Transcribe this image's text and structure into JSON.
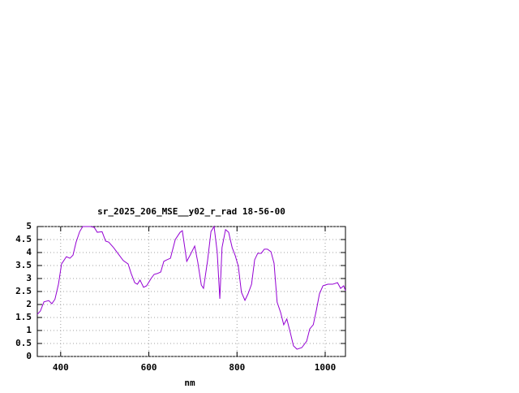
{
  "chart_data": {
    "type": "line",
    "title": "sr_2025_206_MSE__y02_r_rad 18-56-00",
    "x_label": "nm",
    "x": [
      347,
      354,
      362,
      373,
      380,
      387,
      395,
      402,
      413,
      421,
      428,
      435,
      443,
      450,
      468,
      476,
      483,
      494,
      502,
      509,
      520,
      531,
      542,
      553,
      560,
      568,
      574,
      580,
      588,
      595,
      605,
      612,
      619,
      627,
      634,
      641,
      649,
      660,
      671,
      676,
      686,
      693,
      704,
      711,
      719,
      724,
      733,
      741,
      748,
      755,
      761,
      766,
      774,
      781,
      789,
      796,
      803,
      810,
      818,
      825,
      833,
      840,
      847,
      855,
      862,
      869,
      877,
      884,
      891,
      899,
      906,
      913,
      921,
      928,
      936,
      947,
      958,
      965,
      973,
      980,
      987,
      995,
      1006,
      1017,
      1028,
      1035,
      1042,
      1046
    ],
    "series": [
      {
        "color": "#9400d3",
        "values": [
          1.62,
          1.75,
          2.1,
          2.15,
          2.03,
          2.2,
          2.78,
          3.56,
          3.84,
          3.78,
          3.9,
          4.4,
          4.8,
          5.0,
          5.0,
          4.97,
          4.78,
          4.8,
          4.44,
          4.4,
          4.19,
          3.94,
          3.69,
          3.56,
          3.19,
          2.84,
          2.78,
          2.94,
          2.66,
          2.72,
          3.0,
          3.16,
          3.19,
          3.25,
          3.66,
          3.72,
          3.78,
          4.5,
          4.78,
          4.84,
          3.66,
          3.88,
          4.25,
          3.63,
          2.75,
          2.62,
          3.66,
          4.81,
          5.0,
          4.03,
          2.22,
          4.19,
          4.88,
          4.78,
          4.19,
          3.88,
          3.47,
          2.47,
          2.16,
          2.41,
          2.78,
          3.72,
          3.97,
          3.97,
          4.13,
          4.13,
          4.03,
          3.59,
          2.09,
          1.69,
          1.22,
          1.44,
          0.91,
          0.41,
          0.28,
          0.34,
          0.59,
          1.06,
          1.22,
          1.78,
          2.41,
          2.72,
          2.78,
          2.78,
          2.84,
          2.62,
          2.72,
          2.53
        ]
      }
    ],
    "xlim": [
      347,
      1046
    ],
    "xticks": [
      400,
      600,
      800,
      1000
    ],
    "ylim": [
      0,
      5
    ],
    "yticks": [
      0,
      0.5,
      1,
      1.5,
      2,
      2.5,
      3,
      3.5,
      4,
      4.5,
      5
    ],
    "grid": true
  }
}
